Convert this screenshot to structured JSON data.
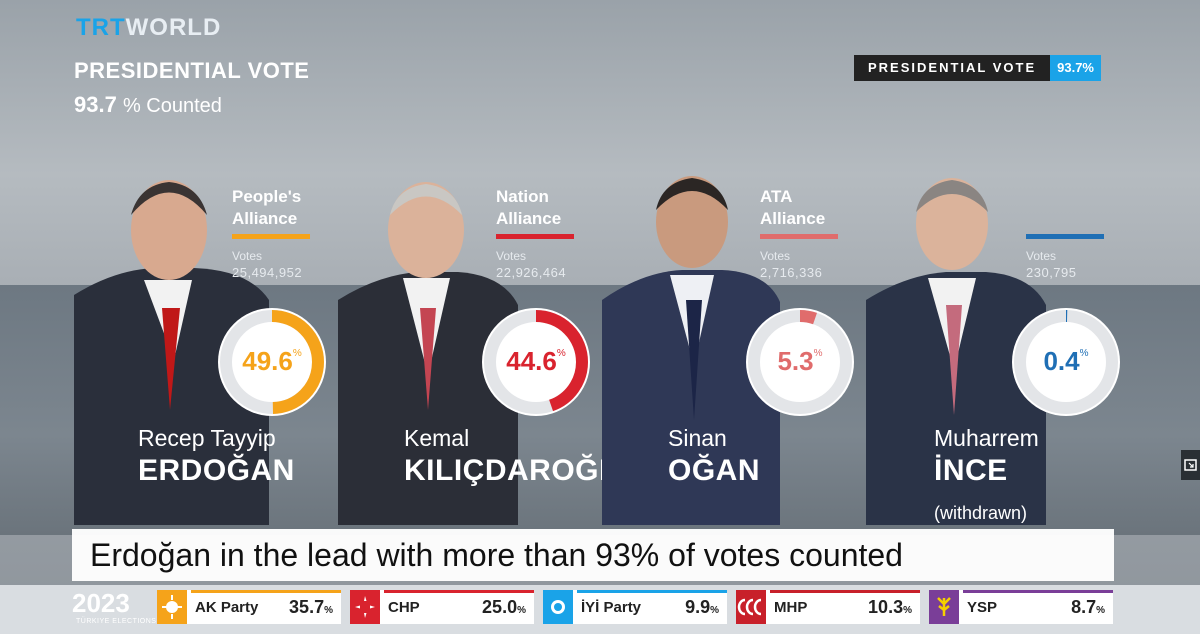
{
  "brand": {
    "trt": "TRT",
    "world": "WORLD"
  },
  "header": {
    "title": "PRESIDENTIAL VOTE",
    "counted_value": "93.7",
    "counted_label": "% Counted"
  },
  "tag": {
    "label": "PRESIDENTIAL VOTE",
    "value": "93.7%"
  },
  "candidates": [
    {
      "alliance_line1": "People's",
      "alliance_line2": "Alliance",
      "alliance_color": "#f5a31a",
      "votes_label": "Votes",
      "votes": "25,494,952",
      "percent": "49.6",
      "pct_fraction": 0.496,
      "ring_color": "#f5a31a",
      "first_name": "Recep Tayyip",
      "last_name": "ERDOĞAN",
      "note": ""
    },
    {
      "alliance_line1": "Nation",
      "alliance_line2": "Alliance",
      "alliance_color": "#d9232e",
      "votes_label": "Votes",
      "votes": "22,926,464",
      "percent": "44.6",
      "pct_fraction": 0.446,
      "ring_color": "#d9232e",
      "first_name": "Kemal",
      "last_name": "KILIÇDAROĞLU",
      "note": ""
    },
    {
      "alliance_line1": "ATA",
      "alliance_line2": "Alliance",
      "alliance_color": "#e06c6c",
      "votes_label": "Votes",
      "votes": "2,716,336",
      "percent": "5.3",
      "pct_fraction": 0.053,
      "ring_color": "#e06c6c",
      "first_name": "Sinan",
      "last_name": "OĞAN",
      "note": ""
    },
    {
      "alliance_line1": "",
      "alliance_line2": "",
      "alliance_color": "#1f6fb5",
      "votes_label": "Votes",
      "votes": "230,795",
      "percent": "0.4",
      "pct_fraction": 0.004,
      "ring_color": "#1f6fb5",
      "first_name": "Muharrem",
      "last_name": "İNCE",
      "note": "(withdrawn)"
    }
  ],
  "headline": "Erdoğan in the lead with more than 93% of votes counted",
  "ticker": {
    "year": "2023",
    "year_sub": "TÜRKIYE ELECTIONS",
    "parties": [
      {
        "name": "AK Party",
        "value": "35.7",
        "unit": "%",
        "color": "#f5a31a"
      },
      {
        "name": "CHP",
        "value": "25.0",
        "unit": "%",
        "color": "#d9232e"
      },
      {
        "name": "İYİ Party",
        "value": "9.9",
        "unit": "%",
        "color": "#1aa3e8"
      },
      {
        "name": "MHP",
        "value": "10.3",
        "unit": "%",
        "color": "#c8202a"
      },
      {
        "name": "YSP",
        "value": "8.7",
        "unit": "%",
        "color": "#7a3e98"
      }
    ]
  }
}
